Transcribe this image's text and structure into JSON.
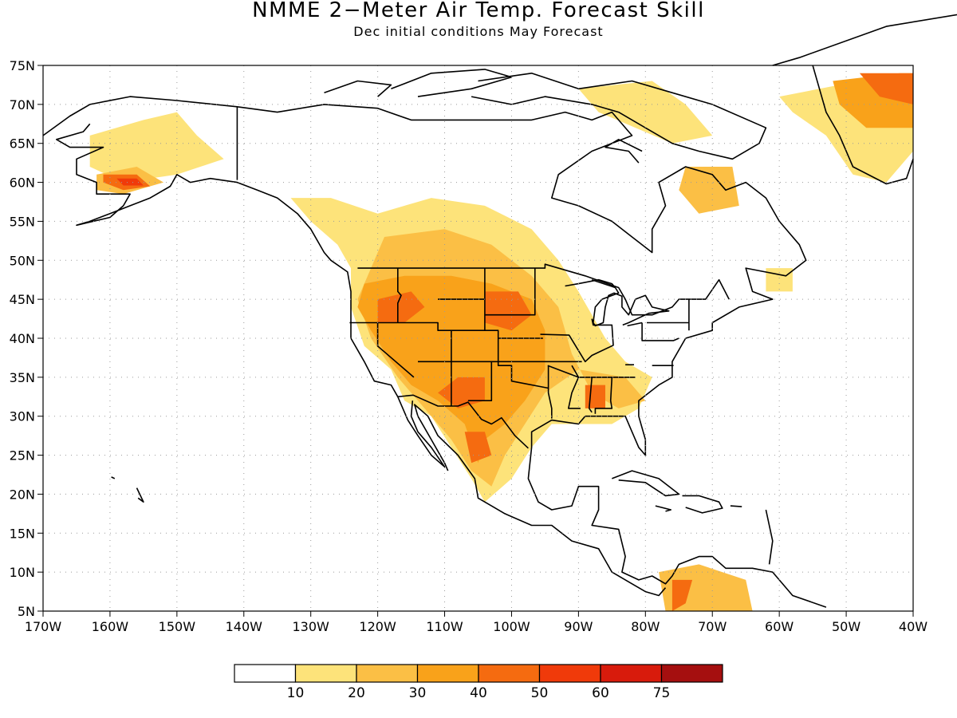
{
  "title": "NMME 2−Meter Air Temp. Forecast Skill",
  "subtitle": "Dec initial conditions   May Forecast",
  "map": {
    "lon_range": [
      -170,
      -40
    ],
    "lat_range": [
      5,
      75
    ],
    "lon_ticks": [
      "170W",
      "160W",
      "150W",
      "140W",
      "130W",
      "120W",
      "110W",
      "100W",
      "90W",
      "80W",
      "70W",
      "60W",
      "50W",
      "40W"
    ],
    "lat_ticks": [
      "5N",
      "10N",
      "15N",
      "20N",
      "25N",
      "30N",
      "35N",
      "40N",
      "45N",
      "50N",
      "55N",
      "60N",
      "65N",
      "70N",
      "75N"
    ],
    "grid": "dotted"
  },
  "colorbar": {
    "labels": [
      "10",
      "20",
      "30",
      "40",
      "50",
      "60",
      "75"
    ],
    "colors": [
      "#ffffff",
      "#fde37a",
      "#fbbf45",
      "#f9a21a",
      "#f56b10",
      "#f03a0a",
      "#d81b0c",
      "#a50f0f"
    ]
  }
}
